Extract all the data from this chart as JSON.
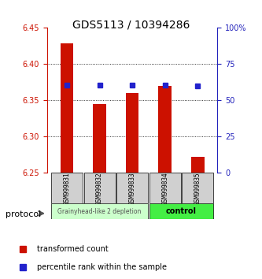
{
  "title": "GDS5113 / 10394286",
  "samples": [
    "GSM999831",
    "GSM999832",
    "GSM999833",
    "GSM999834",
    "GSM999835"
  ],
  "bar_values": [
    6.429,
    6.345,
    6.36,
    6.37,
    6.272
  ],
  "percentile_values": [
    6.371,
    6.371,
    6.371,
    6.371,
    6.37
  ],
  "ylim_left": [
    6.25,
    6.45
  ],
  "ylim_right": [
    0,
    100
  ],
  "yticks_left": [
    6.25,
    6.3,
    6.35,
    6.4,
    6.45
  ],
  "ytick_labels_right": [
    "0",
    "25",
    "50",
    "75",
    "100%"
  ],
  "yticks_right": [
    0,
    25,
    50,
    75,
    100
  ],
  "bar_color": "#cc1100",
  "square_color": "#2222cc",
  "group1_label": "Grainyhead-like 2 depletion",
  "group2_label": "control",
  "group1_color": "#ccffcc",
  "group2_color": "#44ee44",
  "protocol_label": "protocol",
  "legend_bar_label": "transformed count",
  "legend_sq_label": "percentile rank within the sample",
  "bar_width": 0.4,
  "baseline": 6.25,
  "grid_lines": [
    6.3,
    6.35,
    6.4
  ]
}
